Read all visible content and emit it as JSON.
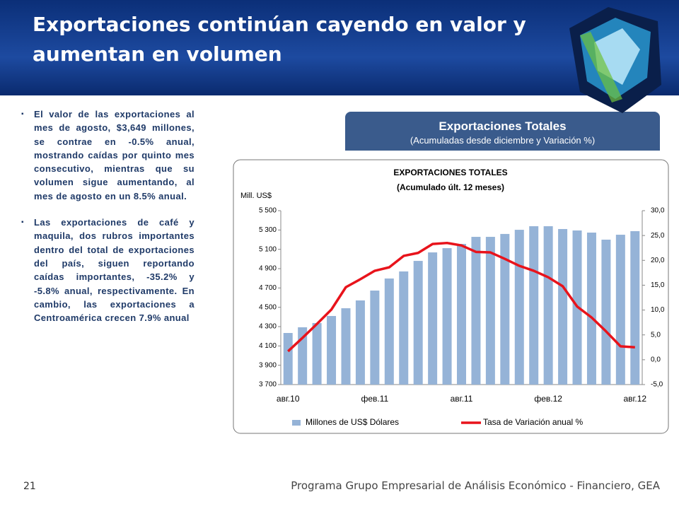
{
  "header": {
    "title": "Exportaciones continúan cayendo en valor y aumentan en volumen"
  },
  "bullets": [
    "El valor de las exportaciones al mes de agosto, $3,649 millones, se contrae en -0.5% anual, mostrando caídas por quinto mes consecutivo, mientras que su volumen sigue aumentando, al mes de agosto en un 8.5% anual.",
    "Las exportaciones de café y maquila, dos rubros importantes dentro del total de exportaciones del país, siguen reportando caídas importantes, -35.2% y -5.8% anual, respectivamente. En cambio, las exportaciones a Centroamérica crecen 7.9% anual"
  ],
  "box": {
    "title": "Exportaciones Totales",
    "subtitle": "(Acumuladas desde diciembre y Variación %)"
  },
  "footer": {
    "page": "21",
    "text": "Programa Grupo Empresarial de Análisis Económico - Financiero, GEA"
  },
  "chart_data": {
    "type": "bar",
    "title": "EXPORTACIONES TOTALES",
    "subtitle": "(Acumulado últ. 12 meses)",
    "ylabel": "Mill. US$",
    "categories": [
      "авг.10",
      null,
      null,
      null,
      null,
      null,
      "фев.11",
      null,
      null,
      null,
      null,
      null,
      "авг.11",
      null,
      null,
      null,
      null,
      null,
      "фев.12",
      null,
      null,
      null,
      null,
      null,
      "авг.12"
    ],
    "series": [
      {
        "name": "Millones de US$ Dólares",
        "type": "bar",
        "color": "#95b3d7",
        "values": [
          4234,
          4293,
          4337,
          4410,
          4490,
          4571,
          4673,
          4798,
          4871,
          4980,
          5068,
          5112,
          5156,
          5229,
          5229,
          5259,
          5302,
          5339,
          5339,
          5310,
          5295,
          5273,
          5200,
          5251,
          5288
        ]
      },
      {
        "name": "Tasa de Variación anual %",
        "type": "line",
        "axis": "y2",
        "color": "#e8131b",
        "values": [
          1.7,
          4.4,
          7.2,
          10.1,
          14.6,
          16.2,
          17.9,
          18.6,
          20.9,
          21.5,
          23.3,
          23.5,
          23.0,
          21.7,
          21.6,
          20.3,
          18.9,
          17.9,
          16.6,
          14.8,
          10.7,
          8.5,
          5.7,
          2.7,
          2.5
        ]
      }
    ],
    "ylim": [
      3700,
      5500
    ],
    "yticks": [
      {
        "value": 3700,
        "label": "3 700"
      },
      {
        "value": 3900,
        "label": "3 900"
      },
      {
        "value": 4100,
        "label": "4 100"
      },
      {
        "value": 4300,
        "label": "4 300"
      },
      {
        "value": 4500,
        "label": "4 500"
      },
      {
        "value": 4700,
        "label": "4 700"
      },
      {
        "value": 4900,
        "label": "4 900"
      },
      {
        "value": 5100,
        "label": "5 100"
      },
      {
        "value": 5300,
        "label": "5 300"
      },
      {
        "value": 5500,
        "label": "5 500"
      }
    ],
    "y2lim": [
      -5,
      30
    ],
    "y2ticks": [
      {
        "value": -5,
        "label": "-5,0"
      },
      {
        "value": 0,
        "label": "0,0"
      },
      {
        "value": 5,
        "label": "5,0"
      },
      {
        "value": 10,
        "label": "10,0"
      },
      {
        "value": 15,
        "label": "15,0"
      },
      {
        "value": 20,
        "label": "20,0"
      },
      {
        "value": 25,
        "label": "25,0"
      },
      {
        "value": 30,
        "label": "30,0"
      }
    ],
    "legend": "bottom",
    "grid": false
  }
}
